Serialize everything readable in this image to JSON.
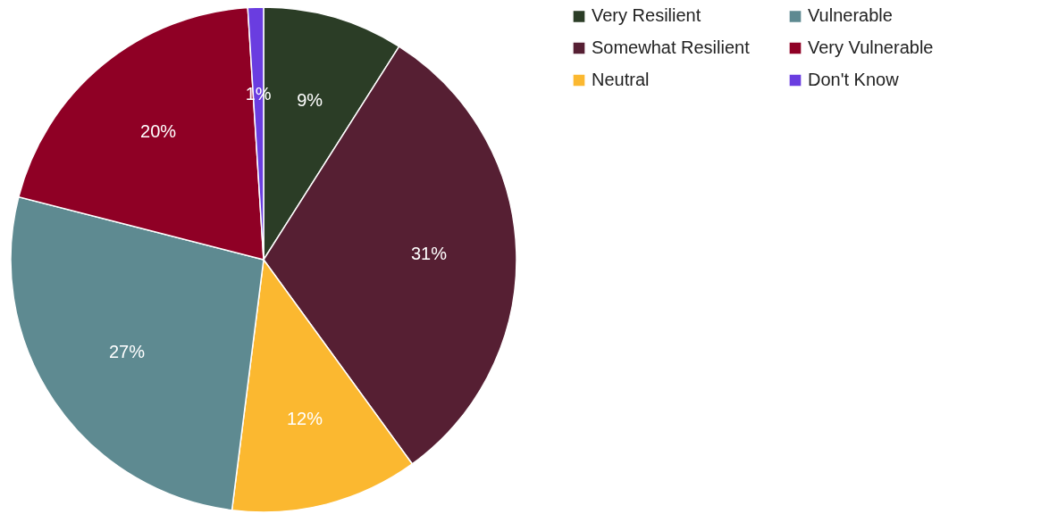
{
  "chart_data": {
    "type": "pie",
    "categories": [
      "Very Resilient",
      "Somewhat Resilient",
      "Neutral",
      "Vulnerable",
      "Very Vulnerable",
      "Don't Know"
    ],
    "values": [
      9,
      31,
      12,
      27,
      20,
      1
    ],
    "colors": [
      "#2b3d26",
      "#561f33",
      "#fbb830",
      "#5e8a91",
      "#8f0025",
      "#6a3de0"
    ],
    "value_labels": [
      "9%",
      "31%",
      "12%",
      "27%",
      "20%",
      "1%"
    ],
    "legend": "right"
  }
}
